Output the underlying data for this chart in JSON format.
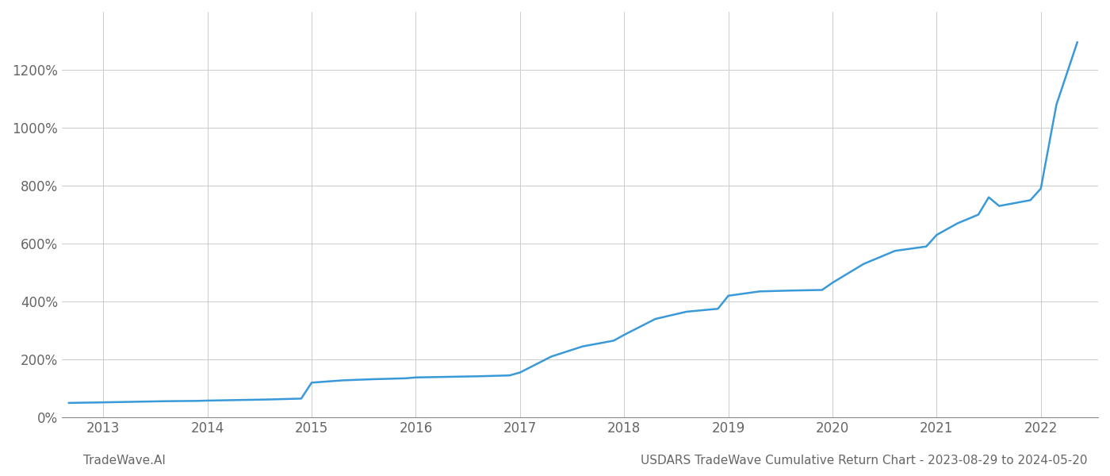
{
  "title": "USDARS TradeWave Cumulative Return Chart - 2023-08-29 to 2024-05-20",
  "watermark": "TradeWave.AI",
  "line_color": "#3a9ad9",
  "background_color": "#ffffff",
  "grid_color": "#cccccc",
  "axis_color": "#888888",
  "text_color": "#666666",
  "x_years": [
    2013,
    2014,
    2015,
    2016,
    2017,
    2018,
    2019,
    2020,
    2021,
    2022
  ],
  "x_data": [
    2012.67,
    2013.0,
    2013.3,
    2013.6,
    2013.9,
    2014.0,
    2014.3,
    2014.6,
    2014.9,
    2015.0,
    2015.3,
    2015.6,
    2015.9,
    2016.0,
    2016.3,
    2016.6,
    2016.9,
    2017.0,
    2017.3,
    2017.6,
    2017.9,
    2018.0,
    2018.3,
    2018.6,
    2018.9,
    2019.0,
    2019.1,
    2019.3,
    2019.6,
    2019.9,
    2020.0,
    2020.3,
    2020.6,
    2020.9,
    2021.0,
    2021.2,
    2021.4,
    2021.5,
    2021.6,
    2021.9,
    2022.0,
    2022.15,
    2022.35
  ],
  "y_data": [
    50,
    52,
    54,
    56,
    57,
    58,
    60,
    62,
    65,
    120,
    128,
    132,
    135,
    138,
    140,
    142,
    145,
    155,
    210,
    245,
    265,
    285,
    340,
    365,
    375,
    420,
    425,
    435,
    438,
    440,
    465,
    530,
    575,
    590,
    630,
    670,
    700,
    760,
    730,
    750,
    790,
    1080,
    1295
  ],
  "ylim": [
    0,
    1400
  ],
  "yticks": [
    0,
    200,
    400,
    600,
    800,
    1000,
    1200
  ],
  "xlim": [
    2012.6,
    2022.55
  ],
  "line_width": 1.8,
  "tick_fontsize": 12,
  "footer_fontsize": 11
}
